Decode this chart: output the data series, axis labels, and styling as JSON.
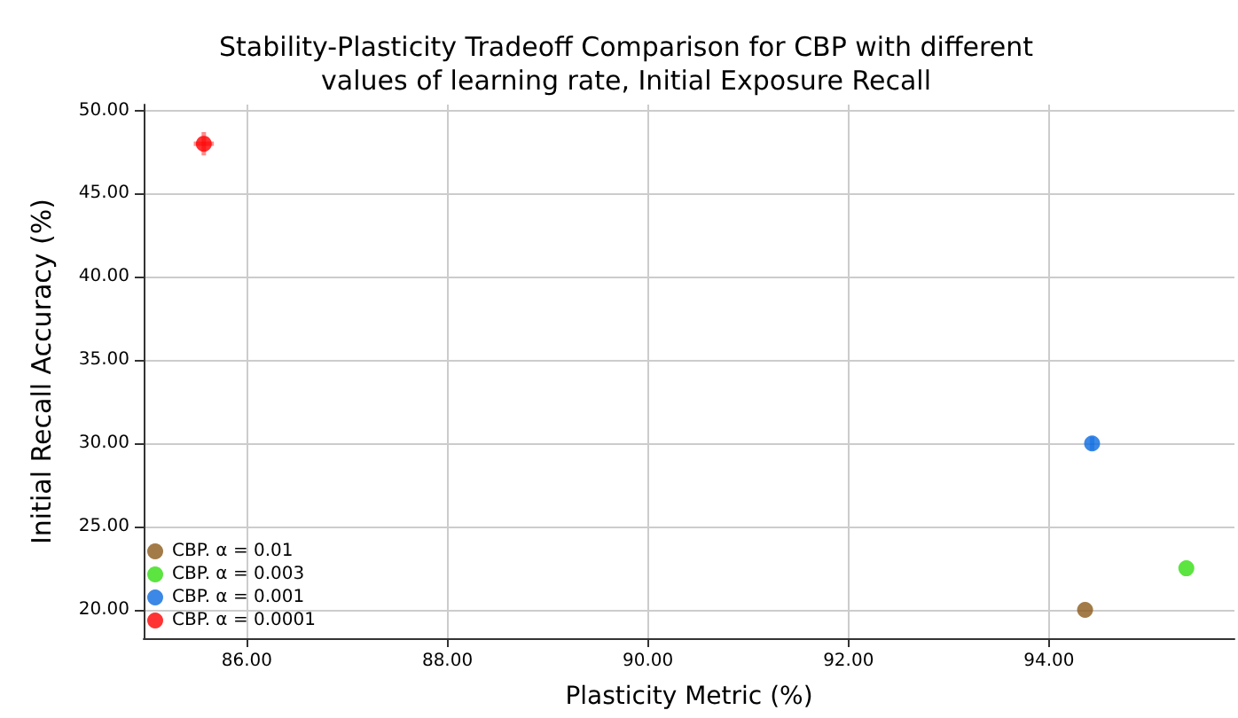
{
  "chart_data": {
    "type": "scatter",
    "title": "Stability-Plasticity Tradeoff Comparison for CBP with different\nvalues of learning rate, Initial Exposure Recall",
    "xlabel": "Plasticity Metric (%)",
    "ylabel": "Initial Recall Accuracy (%)",
    "xlim": [
      84.97,
      95.85
    ],
    "ylim": [
      18.3,
      50.35
    ],
    "xticks": [
      {
        "value": 86,
        "label": "86.00"
      },
      {
        "value": 88,
        "label": "88.00"
      },
      {
        "value": 90,
        "label": "90.00"
      },
      {
        "value": 92,
        "label": "92.00"
      },
      {
        "value": 94,
        "label": "94.00"
      }
    ],
    "yticks": [
      {
        "value": 20,
        "label": "20.00"
      },
      {
        "value": 25,
        "label": "25.00"
      },
      {
        "value": 30,
        "label": "30.00"
      },
      {
        "value": 35,
        "label": "35.00"
      },
      {
        "value": 40,
        "label": "40.00"
      },
      {
        "value": 45,
        "label": "45.00"
      },
      {
        "value": 50,
        "label": "50.00"
      }
    ],
    "grid": true,
    "legend": "bottom left",
    "marker": "circle",
    "series": [
      {
        "name": "CBP. α = 0.01",
        "color": "#8b5a1a",
        "x": [
          94.36
        ],
        "values": [
          20.0
        ]
      },
      {
        "name": "CBP. α = 0.003",
        "color": "#33dd11",
        "x": [
          95.37
        ],
        "values": [
          22.5
        ]
      },
      {
        "name": "CBP. α = 0.001",
        "color": "#0a6ae0",
        "x": [
          94.43
        ],
        "values": [
          30.0
        ],
        "errors": [
          0.4
        ]
      },
      {
        "name": "CBP. α = 0.0001",
        "color": "#ff0000",
        "x": [
          85.57
        ],
        "values": [
          48.0
        ],
        "errors": [
          0.7
        ],
        "xerrors": [
          0.1
        ]
      }
    ]
  }
}
